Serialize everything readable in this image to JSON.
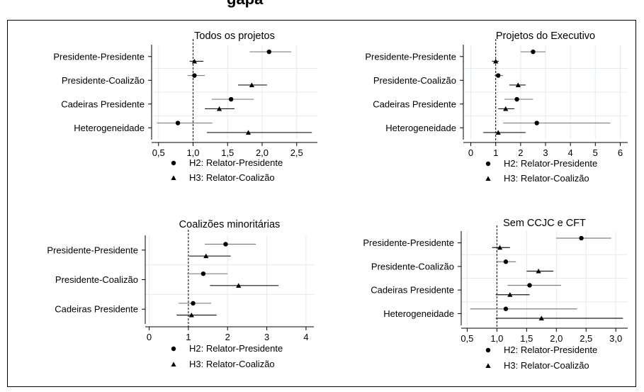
{
  "top_fragment": "gapá",
  "chart_data": [
    {
      "type": "scatter",
      "title": "Todos os projetos",
      "categories": [
        "Presidente-Presidente",
        "Presidente-Coalizão",
        "Cadeiras Presidente",
        "Heterogeneidade"
      ],
      "xlim": [
        0.4,
        2.8
      ],
      "xticks": [
        0.5,
        1.0,
        1.5,
        2.0,
        2.5
      ],
      "xtick_labels": [
        "0,5",
        "1,0",
        "1,5",
        "2,0",
        "2,5"
      ],
      "reference_line": 1,
      "grid": true,
      "legend": "bottom",
      "series": [
        {
          "name": "H2: Relator-Presidente",
          "marker": "circle",
          "values": [
            2.1,
            1.02,
            1.55,
            0.78
          ],
          "lo": [
            1.82,
            0.92,
            1.27,
            0.48
          ],
          "hi": [
            2.42,
            1.17,
            1.88,
            1.28
          ]
        },
        {
          "name": "H3: Relator-Coalizão",
          "marker": "triangle",
          "values": [
            1.02,
            1.85,
            1.38,
            1.8
          ],
          "lo": [
            0.95,
            1.65,
            1.17,
            1.2
          ],
          "hi": [
            1.15,
            2.07,
            1.6,
            2.72
          ]
        }
      ]
    },
    {
      "type": "scatter",
      "title": "Projetos do Executivo",
      "categories": [
        "Presidente-Presidente",
        "Presidente-Coalizão",
        "Cadeiras Presidente",
        "Heterogeneidade"
      ],
      "xlim": [
        -0.3,
        6.3
      ],
      "xticks": [
        0,
        1,
        2,
        3,
        4,
        5,
        6
      ],
      "xtick_labels": [
        "0",
        "1",
        "2",
        "3",
        "4",
        "5",
        "6"
      ],
      "reference_line": 1,
      "grid": true,
      "legend": "bottom",
      "series": [
        {
          "name": "H2: Relator-Presidente",
          "marker": "circle",
          "values": [
            2.5,
            1.1,
            1.85,
            2.65
          ],
          "lo": [
            2.0,
            0.95,
            1.35,
            1.3
          ],
          "hi": [
            3.0,
            1.3,
            2.5,
            5.6
          ]
        },
        {
          "name": "H3: Relator-Coalizão",
          "marker": "triangle",
          "values": [
            1.0,
            1.9,
            1.4,
            1.1
          ],
          "lo": [
            0.85,
            1.55,
            1.1,
            0.5
          ],
          "hi": [
            1.12,
            2.2,
            1.75,
            2.2
          ]
        }
      ]
    },
    {
      "type": "scatter",
      "title": "Coalizões minoritárias",
      "categories": [
        "Presidente-Presidente",
        "Presidente-Coalizão",
        "Cadeiras Presidente"
      ],
      "xlim": [
        -0.1,
        4.2
      ],
      "xticks": [
        0,
        1,
        2,
        3,
        4
      ],
      "xtick_labels": [
        "0",
        "1",
        "2",
        "3",
        "4"
      ],
      "reference_line": 1,
      "grid": true,
      "legend": "bottom",
      "series": [
        {
          "name": "H2: Relator-Presidente",
          "marker": "circle",
          "values": [
            1.95,
            1.38,
            1.12
          ],
          "lo": [
            1.42,
            0.97,
            0.75
          ],
          "hi": [
            2.72,
            2.0,
            1.58
          ]
        },
        {
          "name": "H3: Relator-Coalizão",
          "marker": "triangle",
          "values": [
            1.45,
            2.28,
            1.08
          ],
          "lo": [
            1.02,
            1.55,
            0.7
          ],
          "hi": [
            2.08,
            3.3,
            1.72
          ]
        }
      ]
    },
    {
      "type": "scatter",
      "title": "Sem CCJC e CFT",
      "categories": [
        "Presidente-Presidente",
        "Presidente-Coalizão",
        "Cadeiras Presidente",
        "Heterogeneidade"
      ],
      "xlim": [
        0.4,
        3.2
      ],
      "xticks": [
        0.5,
        1.0,
        1.5,
        2.0,
        2.5,
        3.0
      ],
      "xtick_labels": [
        "0,5",
        "1,0",
        "1,5",
        "2,0",
        "2,5",
        "3,0"
      ],
      "reference_line": 1,
      "grid": true,
      "legend": "bottom",
      "series": [
        {
          "name": "H2: Relator-Presidente",
          "marker": "circle",
          "values": [
            2.42,
            1.15,
            1.55,
            1.15
          ],
          "lo": [
            2.0,
            1.0,
            1.18,
            0.55
          ],
          "hi": [
            2.92,
            1.32,
            2.08,
            2.35
          ]
        },
        {
          "name": "H3: Relator-Coalizão",
          "marker": "triangle",
          "values": [
            1.05,
            1.7,
            1.22,
            1.75
          ],
          "lo": [
            0.92,
            1.5,
            0.98,
            0.98
          ],
          "hi": [
            1.22,
            1.95,
            1.55,
            3.12
          ]
        }
      ]
    }
  ]
}
